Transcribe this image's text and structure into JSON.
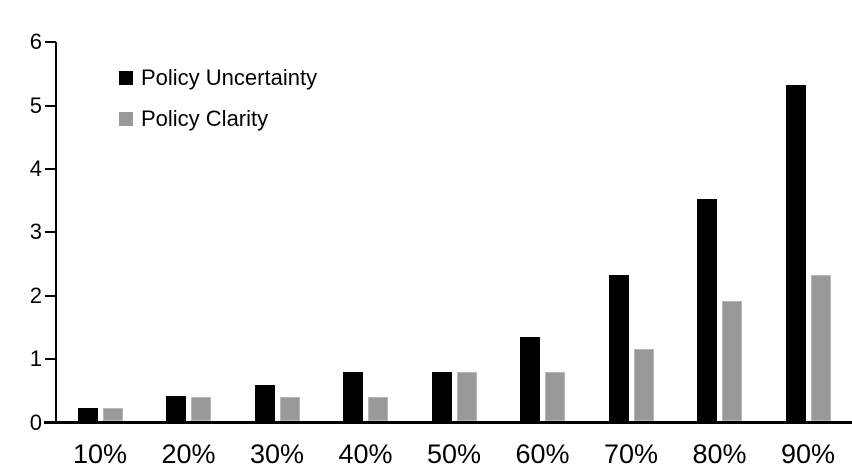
{
  "chart_data": {
    "type": "bar",
    "title": "",
    "xlabel": "",
    "ylabel": "",
    "categories": [
      "10%",
      "20%",
      "30%",
      "40%",
      "50%",
      "60%",
      "70%",
      "80%",
      "90%"
    ],
    "series": [
      {
        "name": "Policy Uncertainty",
        "color": "#000000",
        "values": [
          0.2,
          0.4,
          0.57,
          0.77,
          0.78,
          1.33,
          2.3,
          3.5,
          5.3
        ]
      },
      {
        "name": "Policy Clarity",
        "color": "#999999",
        "values": [
          0.2,
          0.38,
          0.38,
          0.38,
          0.77,
          0.77,
          1.13,
          1.9,
          2.3
        ]
      }
    ],
    "ylim": [
      0,
      6
    ],
    "yticks": [
      0,
      1,
      2,
      3,
      4,
      5,
      6
    ],
    "grid": false,
    "legend_position": "top-left-inside",
    "axis_color": "#000000",
    "background_color": "#ffffff"
  }
}
